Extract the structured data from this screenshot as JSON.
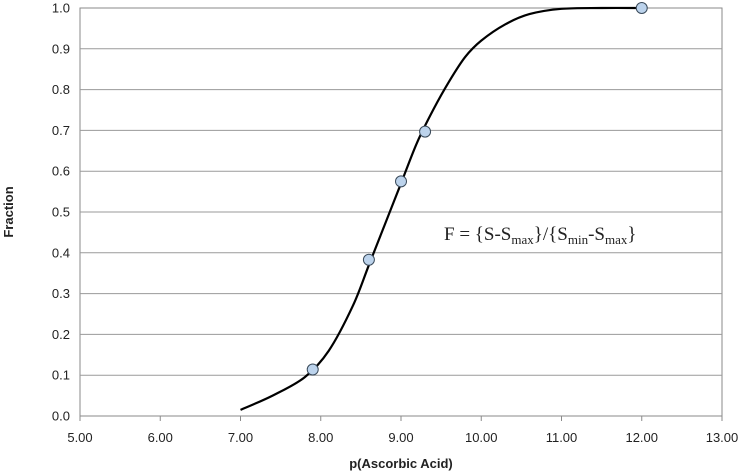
{
  "chart_data": {
    "type": "scatter",
    "xlabel": "p(Ascorbic Acid)",
    "ylabel": "Fraction",
    "xlim": [
      5.0,
      13.0
    ],
    "ylim": [
      0.0,
      1.0
    ],
    "x_ticks": [
      "5.00",
      "6.00",
      "7.00",
      "8.00",
      "9.00",
      "10.00",
      "11.00",
      "12.00",
      "13.00"
    ],
    "y_ticks": [
      "0.0",
      "0.1",
      "0.2",
      "0.3",
      "0.4",
      "0.5",
      "0.6",
      "0.7",
      "0.8",
      "0.9",
      "1.0"
    ],
    "grid": "horizontal",
    "legend": "none",
    "series": [
      {
        "kind": "markers",
        "color": "#bcd3ec",
        "edge_color": "#3a4a5a",
        "points": [
          {
            "x": 7.9,
            "y": 0.114
          },
          {
            "x": 8.6,
            "y": 0.383
          },
          {
            "x": 9.0,
            "y": 0.575
          },
          {
            "x": 9.3,
            "y": 0.697
          },
          {
            "x": 12.0,
            "y": 1.0
          }
        ]
      },
      {
        "kind": "fit-line",
        "color": "#000000",
        "points": [
          {
            "x": 7.0,
            "y": 0.015
          },
          {
            "x": 7.4,
            "y": 0.05
          },
          {
            "x": 7.8,
            "y": 0.095
          },
          {
            "x": 8.1,
            "y": 0.16
          },
          {
            "x": 8.4,
            "y": 0.27
          },
          {
            "x": 8.6,
            "y": 0.37
          },
          {
            "x": 8.8,
            "y": 0.47
          },
          {
            "x": 9.0,
            "y": 0.57
          },
          {
            "x": 9.2,
            "y": 0.67
          },
          {
            "x": 9.4,
            "y": 0.75
          },
          {
            "x": 9.6,
            "y": 0.82
          },
          {
            "x": 9.8,
            "y": 0.88
          },
          {
            "x": 10.0,
            "y": 0.92
          },
          {
            "x": 10.3,
            "y": 0.96
          },
          {
            "x": 10.6,
            "y": 0.985
          },
          {
            "x": 11.0,
            "y": 0.998
          },
          {
            "x": 11.5,
            "y": 1.0
          },
          {
            "x": 12.0,
            "y": 1.0
          }
        ]
      }
    ],
    "annotation": {
      "prefix": "F = {S-S",
      "sub1": "max",
      "mid1": "}/{S",
      "sub2": "min",
      "mid2": "-S",
      "sub3": "max",
      "suffix": "}"
    }
  }
}
